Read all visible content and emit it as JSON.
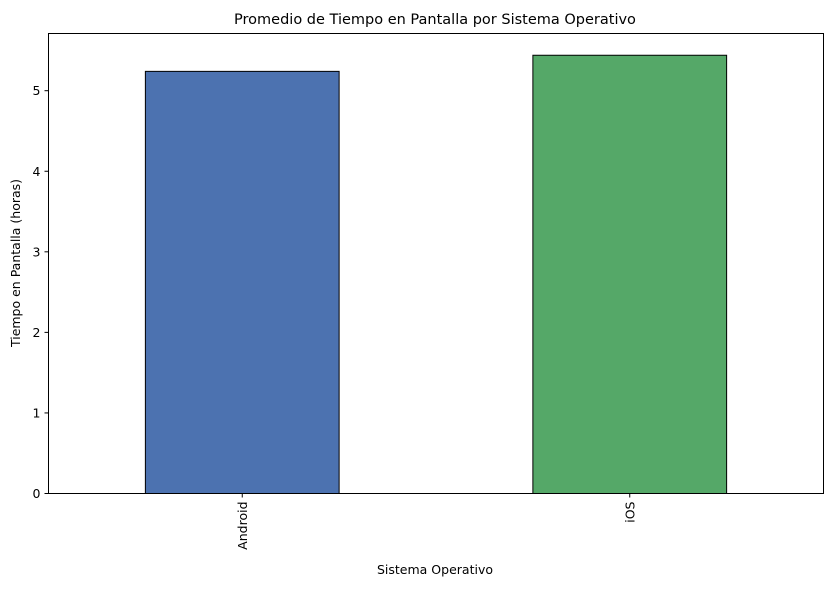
{
  "chart_data": {
    "type": "bar",
    "title": "Promedio de Tiempo en Pantalla por Sistema Operativo",
    "xlabel": "Sistema Operativo",
    "ylabel": "Tiempo en Pantalla (horas)",
    "categories": [
      "Android",
      "iOS"
    ],
    "values": [
      5.24,
      5.44
    ],
    "colors": [
      "#4c72b0",
      "#55a868"
    ],
    "edge_color": "#000000",
    "ylim": [
      0,
      5.71
    ],
    "yticks": [
      0,
      1,
      2,
      3,
      4,
      5
    ],
    "xtick_rotation": "vertical",
    "grid": false,
    "legend": "none"
  }
}
